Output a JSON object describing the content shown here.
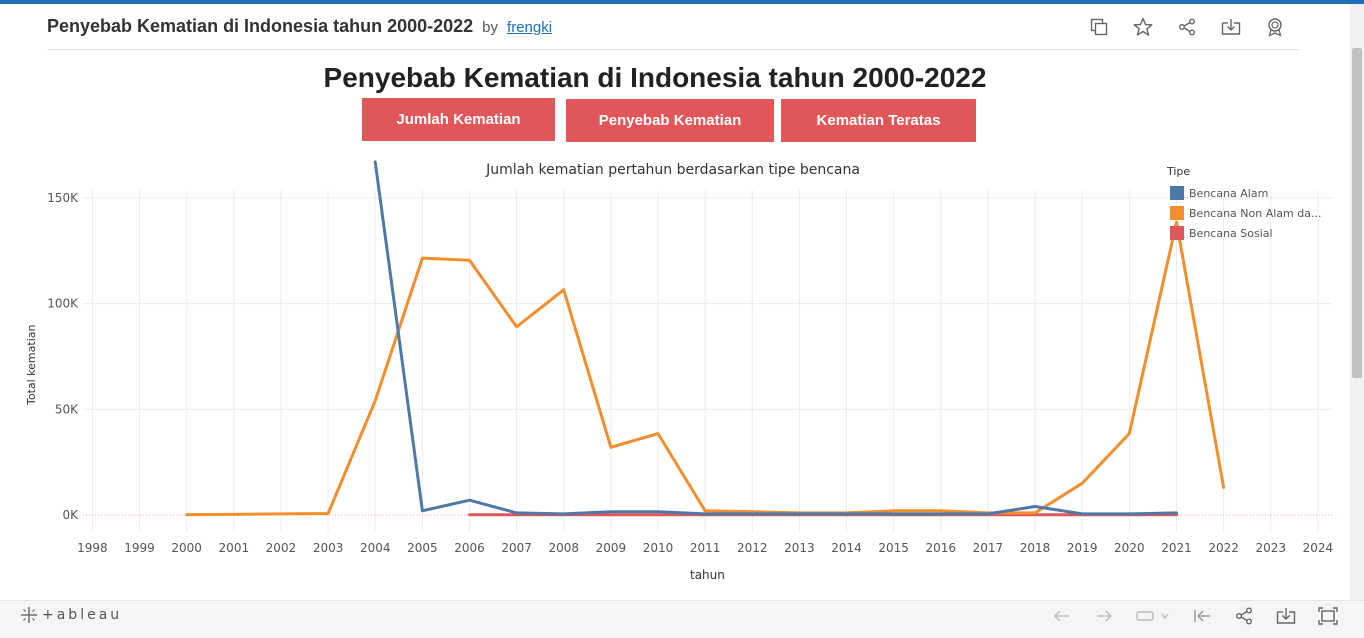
{
  "header": {
    "title": "Penyebab Kematian di Indonesia tahun 2000-2022",
    "by": "by",
    "author": "frengki",
    "icons": [
      "copy-icon",
      "star-icon",
      "share-icon",
      "download-icon",
      "badge-icon"
    ]
  },
  "dashboard": {
    "title": "Penyebab Kematian di Indonesia tahun 2000-2022",
    "buttons": [
      "Jumlah Kematian",
      "Penyebab Kematian",
      "Kematian Teratas"
    ]
  },
  "chart_data": {
    "type": "line",
    "title": "Jumlah kematian pertahun berdasarkan tipe bencana",
    "xlabel": "tahun",
    "ylabel": "Total kematian",
    "x_ticks": [
      "1998",
      "1999",
      "2000",
      "2001",
      "2002",
      "2003",
      "2004",
      "2005",
      "2006",
      "2007",
      "2008",
      "2009",
      "2010",
      "2011",
      "2012",
      "2013",
      "2014",
      "2015",
      "2016",
      "2017",
      "2018",
      "2019",
      "2020",
      "2021",
      "2022",
      "2023",
      "2024"
    ],
    "y_ticks": [
      "0K",
      "50K",
      "100K",
      "150K"
    ],
    "ylim": [
      0,
      175000
    ],
    "xlim": [
      1997.8,
      2024.3
    ],
    "grid": true,
    "legend_title": "Tipe",
    "legend_position": "top-right",
    "series": [
      {
        "name": "Bencana Alam",
        "color": "#4e79a7",
        "x": [
          2004,
          2005,
          2006,
          2007,
          2008,
          2009,
          2010,
          2011,
          2012,
          2013,
          2014,
          2015,
          2016,
          2017,
          2018,
          2019,
          2020,
          2021
        ],
        "values": [
          167000,
          2000,
          7000,
          1000,
          500,
          1500,
          1500,
          500,
          500,
          500,
          500,
          500,
          500,
          500,
          4000,
          500,
          500,
          1000
        ]
      },
      {
        "name": "Bencana Non Alam da...",
        "color": "#f28e2b",
        "x": [
          2000,
          2001,
          2002,
          2003,
          2004,
          2005,
          2006,
          2007,
          2008,
          2009,
          2010,
          2011,
          2012,
          2013,
          2014,
          2015,
          2016,
          2017,
          2018,
          2019,
          2020,
          2021,
          2022
        ],
        "values": [
          200,
          300,
          500,
          700,
          54000,
          121500,
          120500,
          89000,
          106500,
          32000,
          38500,
          2000,
          1500,
          1000,
          1000,
          2000,
          2000,
          1000,
          1000,
          15000,
          38500,
          138500,
          13000
        ]
      },
      {
        "name": "Bencana Sosial",
        "color": "#e15759",
        "x": [
          2006,
          2007,
          2008,
          2009,
          2010,
          2011,
          2012,
          2013,
          2014,
          2015,
          2016,
          2017,
          2018,
          2019,
          2020,
          2021
        ],
        "values": [
          100,
          100,
          100,
          100,
          100,
          100,
          100,
          100,
          100,
          100,
          100,
          100,
          100,
          100,
          100,
          100
        ]
      }
    ]
  },
  "footer": {
    "logo_text": "+ableau"
  }
}
